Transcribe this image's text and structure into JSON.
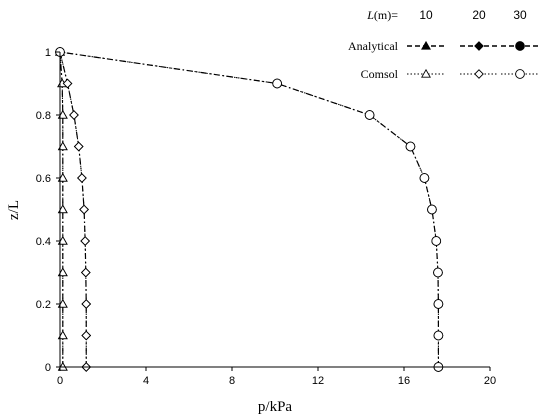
{
  "chart_data": {
    "type": "line",
    "xlabel": "p/kPa",
    "ylabel": "z/L",
    "xlim": [
      0,
      20
    ],
    "ylim": [
      0,
      1
    ],
    "xticks": [
      "0",
      "4",
      "8",
      "12",
      "16",
      "20"
    ],
    "yticks": [
      "0",
      "0.2",
      "0.4",
      "0.6",
      "0.8",
      "1"
    ],
    "grid": false,
    "legend": {
      "placement": "top-right",
      "header_label": "L",
      "header_unit": "(m)=",
      "l_values": [
        "10",
        "20",
        "30"
      ],
      "rows": [
        "Analytical",
        "Comsol"
      ]
    },
    "series": [
      {
        "name": "Analytical",
        "L": "10",
        "marker": "triangle-filled",
        "line": "dash-dot",
        "x": [
          0.13,
          0.13,
          0.13,
          0.13,
          0.13,
          0.13,
          0.13,
          0.13,
          0.13,
          0.1,
          0.0
        ],
        "y": [
          0,
          0.1,
          0.2,
          0.3,
          0.4,
          0.5,
          0.6,
          0.7,
          0.8,
          0.9,
          1.0
        ]
      },
      {
        "name": "Analytical",
        "L": "20",
        "marker": "diamond-filled",
        "line": "dash-dot",
        "x": [
          1.22,
          1.22,
          1.22,
          1.2,
          1.17,
          1.12,
          1.02,
          0.87,
          0.65,
          0.35,
          0.0
        ],
        "y": [
          0,
          0.1,
          0.2,
          0.3,
          0.4,
          0.5,
          0.6,
          0.7,
          0.8,
          0.9,
          1.0
        ]
      },
      {
        "name": "Analytical",
        "L": "30",
        "marker": "circle-filled",
        "line": "dash-dot",
        "x": [
          17.6,
          17.6,
          17.6,
          17.58,
          17.5,
          17.3,
          16.95,
          16.3,
          14.4,
          10.1,
          0.0
        ],
        "y": [
          0,
          0.1,
          0.2,
          0.3,
          0.4,
          0.5,
          0.6,
          0.7,
          0.8,
          0.9,
          1.0
        ]
      },
      {
        "name": "Comsol",
        "L": "10",
        "marker": "triangle-open",
        "line": "dotted",
        "x": [
          0.13,
          0.13,
          0.13,
          0.13,
          0.13,
          0.13,
          0.13,
          0.13,
          0.13,
          0.1,
          0.0
        ],
        "y": [
          0,
          0.1,
          0.2,
          0.3,
          0.4,
          0.5,
          0.6,
          0.7,
          0.8,
          0.9,
          1.0
        ]
      },
      {
        "name": "Comsol",
        "L": "20",
        "marker": "diamond-open",
        "line": "dotted",
        "x": [
          1.22,
          1.22,
          1.22,
          1.2,
          1.17,
          1.12,
          1.02,
          0.87,
          0.65,
          0.35,
          0.0
        ],
        "y": [
          0,
          0.1,
          0.2,
          0.3,
          0.4,
          0.5,
          0.6,
          0.7,
          0.8,
          0.9,
          1.0
        ]
      },
      {
        "name": "Comsol",
        "L": "30",
        "marker": "circle-open",
        "line": "dotted",
        "x": [
          17.6,
          17.6,
          17.6,
          17.58,
          17.5,
          17.3,
          16.95,
          16.3,
          14.4,
          10.1,
          0.0
        ],
        "y": [
          0,
          0.1,
          0.2,
          0.3,
          0.4,
          0.5,
          0.6,
          0.7,
          0.8,
          0.9,
          1.0
        ]
      }
    ]
  }
}
